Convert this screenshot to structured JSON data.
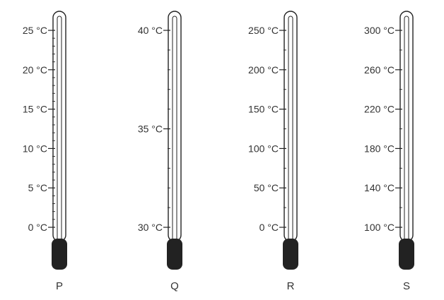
{
  "thermometers": [
    {
      "id": "P",
      "label": "P",
      "ticks": [
        "25 °C",
        "20 °C",
        "15 °C",
        "10 °C",
        "5 °C",
        "0 °C"
      ],
      "tick_values": [
        25,
        20,
        15,
        10,
        5,
        0
      ],
      "minor_per_major": 5
    },
    {
      "id": "Q",
      "label": "Q",
      "ticks": [
        "40 °C",
        "35 °C",
        "30 °C"
      ],
      "tick_values": [
        40,
        35,
        30
      ],
      "minor_per_major": 5
    },
    {
      "id": "R",
      "label": "R",
      "ticks": [
        "250 °C",
        "200 °C",
        "150 °C",
        "100 °C",
        "50 °C",
        "0 °C"
      ],
      "tick_values": [
        250,
        200,
        150,
        100,
        50,
        0
      ],
      "minor_per_major": 2
    },
    {
      "id": "S",
      "label": "S",
      "ticks": [
        "300 °C",
        "260 °C",
        "220 °C",
        "180 °C",
        "140 °C",
        "100 °C"
      ],
      "tick_values": [
        300,
        260,
        220,
        180,
        140,
        100
      ],
      "minor_per_major": 2
    }
  ],
  "colors": {
    "outline": "#222222",
    "bulb": "#222222",
    "text": "#333333"
  }
}
